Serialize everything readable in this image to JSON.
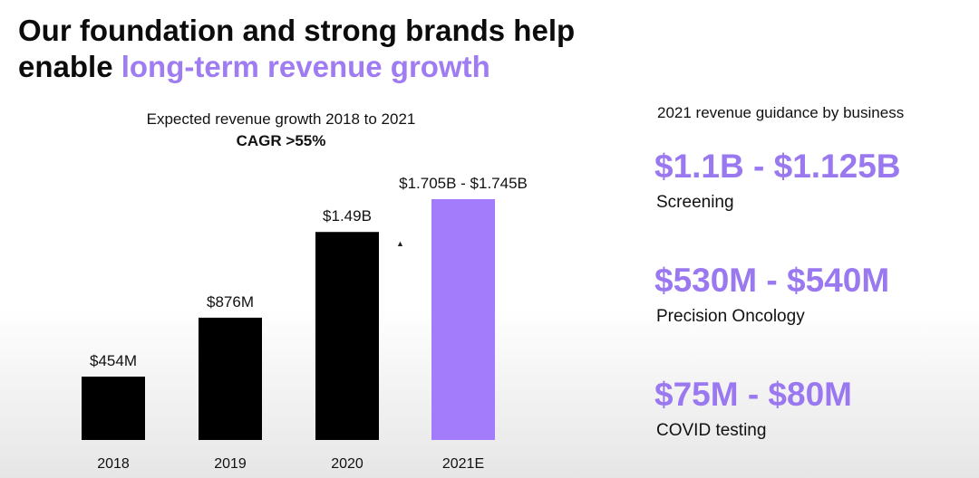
{
  "title": {
    "line1": "Our foundation and strong brands help",
    "line2_plain": "enable ",
    "line2_accent": "long-term revenue growth"
  },
  "colors": {
    "accent": "#a07cf2",
    "bar_dark": "#000000",
    "bar_accent": "#a27cfb"
  },
  "chart_data": {
    "type": "bar",
    "title": "Expected revenue growth 2018 to 2021",
    "subtitle": "CAGR >55%",
    "categories": [
      "2018",
      "2019",
      "2020",
      "2021E"
    ],
    "values": [
      0.454,
      0.876,
      1.49,
      1.725
    ],
    "data_labels": [
      "$454M",
      "$876M",
      "$1.49B",
      "$1.705B - $1.745B"
    ],
    "highlight": [
      false,
      false,
      false,
      true
    ],
    "ylim": [
      0,
      1.725
    ],
    "grid": false,
    "xlabel": "",
    "ylabel": ""
  },
  "guidance": {
    "header": "2021 revenue guidance by business",
    "items": [
      {
        "value": "$1.1B - $1.125B",
        "label": "Screening"
      },
      {
        "value": "$530M - $540M",
        "label": "Precision Oncology"
      },
      {
        "value": "$75M - $80M",
        "label": "COVID testing"
      }
    ]
  },
  "cursor_icon": "arrow-cursor-icon"
}
